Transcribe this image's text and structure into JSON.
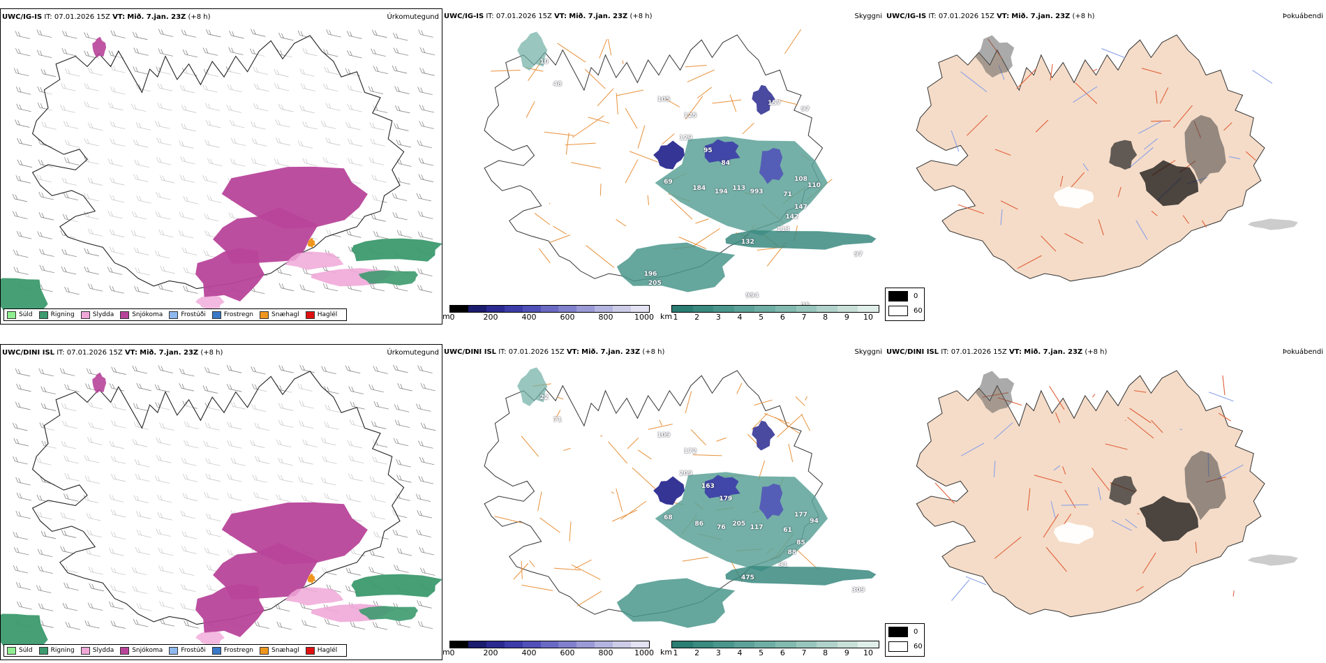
{
  "rows": [
    {
      "type": {
        "model": "UWC/IG-IS",
        "it_label": "IT:",
        "it_value": "07.01.2026 15Z",
        "vt_label": "VT:",
        "vt_value": "Mið. 7.jan. 23Z",
        "lead": "(+8 h)",
        "title": "Úrkomutegund"
      },
      "vis": {
        "model": "UWC/IG-IS",
        "it_label": "IT:",
        "it_value": "07.01.2026 15Z",
        "vt_label": "VT:",
        "vt_value": "Mið. 7.jan. 23Z",
        "lead": "(+8 h)",
        "title": "Skyggni",
        "labels": [
          "10",
          "48",
          "105",
          "125",
          "129",
          "95",
          "84",
          "69",
          "184",
          "194",
          "113",
          "993",
          "71",
          "108",
          "110",
          "147",
          "142",
          "113",
          "132",
          "97",
          "196",
          "205",
          "994",
          "157",
          "97",
          "25"
        ]
      },
      "fog": {
        "model": "UWC/IG-IS",
        "it_label": "IT:",
        "it_value": "07.01.2026 15Z",
        "vt_label": "VT:",
        "vt_value": "Mið. 7.jan. 23Z",
        "lead": "(+8 h)",
        "title": "Þokuábendi"
      }
    },
    {
      "type": {
        "model": "UWC/DINI ISL",
        "it_label": "IT:",
        "it_value": "07.01.2026 15Z",
        "vt_label": "VT:",
        "vt_value": "Mið. 7.jan. 23Z",
        "lead": "(+8 h)",
        "title": "Úrkomutegund"
      },
      "vis": {
        "model": "UWC/DINI ISL",
        "it_label": "IT:",
        "it_value": "07.01.2026 15Z",
        "vt_label": "VT:",
        "vt_value": "Mið. 7.jan. 23Z",
        "lead": "(+8 h)",
        "title": "Skyggni",
        "labels": [
          "22",
          "71",
          "109",
          "172",
          "209",
          "163",
          "179",
          "68",
          "86",
          "76",
          "205",
          "117",
          "61",
          "177",
          "94",
          "85",
          "88",
          "91",
          "475",
          "309"
        ]
      },
      "fog": {
        "model": "UWC/DINI ISL",
        "it_label": "IT:",
        "it_value": "07.01.2026 15Z",
        "vt_label": "VT:",
        "vt_value": "Mið. 7.jan. 23Z",
        "lead": "(+8 h)",
        "title": "Þokuábendi"
      }
    }
  ],
  "precip_legend": [
    {
      "label": "Súld",
      "color": "#90ee90"
    },
    {
      "label": "Rigning",
      "color": "#3c9a6e"
    },
    {
      "label": "Slydda",
      "color": "#f0a8d8"
    },
    {
      "label": "Snjókoma",
      "color": "#b8449a"
    },
    {
      "label": "Frostúði",
      "color": "#8fb8ee"
    },
    {
      "label": "Frostregn",
      "color": "#3a78c8"
    },
    {
      "label": "Snæhagl",
      "color": "#f0961e"
    },
    {
      "label": "Haglél",
      "color": "#e01010"
    }
  ],
  "ceiling_bar": {
    "unit": "m",
    "ticks": [
      "0",
      "200",
      "400",
      "600",
      "800",
      "1000"
    ],
    "colors": [
      "#000000",
      "#1c1c6e",
      "#2a2a90",
      "#3c3ca8",
      "#5050b8",
      "#6a6ac4",
      "#8080cc",
      "#9a9ad6",
      "#b4b4e0",
      "#cccce8",
      "#e2e2f2"
    ]
  },
  "visibility_bar": {
    "unit": "km",
    "ticks": [
      "1",
      "2",
      "3",
      "4",
      "5",
      "6",
      "7",
      "8",
      "9",
      "10"
    ],
    "colors": [
      "#2a7d72",
      "#3a8a80",
      "#4a968c",
      "#5ca298",
      "#6eaea4",
      "#82baaf",
      "#98c6bc",
      "#b0d2ca",
      "#c8e0d8",
      "#e0eee9"
    ]
  },
  "fog_legend": [
    {
      "label": "0",
      "color": "#000000"
    },
    {
      "label": "60",
      "color": "#ffffff"
    }
  ]
}
